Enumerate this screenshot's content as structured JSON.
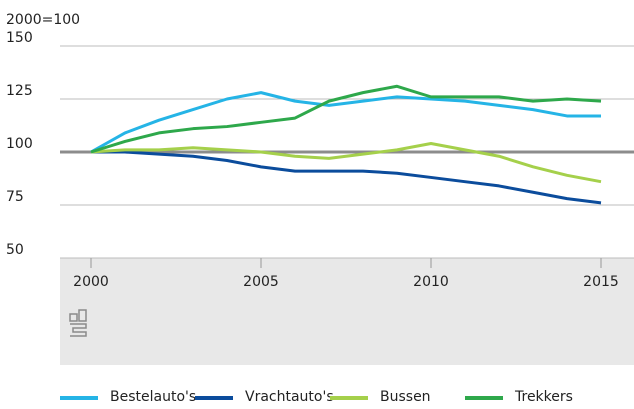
{
  "chart_data": {
    "type": "line",
    "y_axis_label": "2000=100",
    "x": [
      2000,
      2001,
      2002,
      2003,
      2004,
      2005,
      2006,
      2007,
      2008,
      2009,
      2010,
      2011,
      2012,
      2013,
      2014,
      2015
    ],
    "xlim": [
      2000,
      2015
    ],
    "xticks": [
      2000,
      2005,
      2010,
      2015
    ],
    "ylim": [
      50,
      150
    ],
    "yticks": [
      50,
      75,
      100,
      125,
      150
    ],
    "grid": true,
    "series": [
      {
        "name": "Bestelauto's",
        "color": "#25b4e6",
        "values": [
          100,
          109,
          115,
          120,
          125,
          128,
          124,
          122,
          124,
          126,
          125,
          124,
          122,
          120,
          117,
          117
        ]
      },
      {
        "name": "Vrachtauto's",
        "color": "#0b4c9c",
        "values": [
          100,
          100,
          99,
          98,
          96,
          93,
          91,
          91,
          91,
          90,
          88,
          86,
          84,
          81,
          78,
          76
        ]
      },
      {
        "name": "Bussen",
        "color": "#a5d04b",
        "values": [
          100,
          101,
          101,
          102,
          101,
          100,
          98,
          97,
          99,
          101,
          104,
          101,
          98,
          93,
          89,
          86
        ]
      },
      {
        "name": "Trekkers",
        "color": "#2ea84b",
        "values": [
          100,
          105,
          109,
          111,
          112,
          114,
          116,
          124,
          128,
          131,
          126,
          126,
          126,
          124,
          125,
          124
        ]
      }
    ]
  }
}
